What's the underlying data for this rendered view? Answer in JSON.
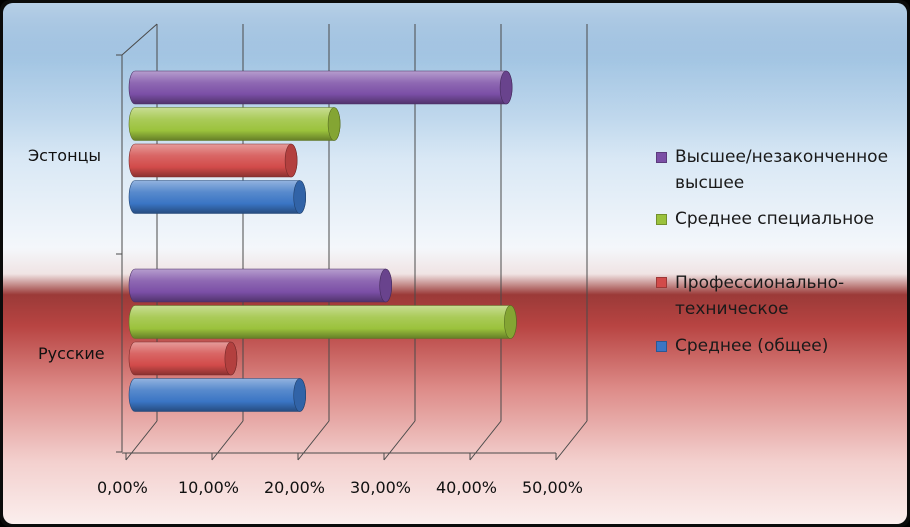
{
  "chart_data": {
    "type": "bar",
    "orientation": "horizontal",
    "style": "3d-cylinder",
    "categories": [
      "Эстонцы",
      "Русские"
    ],
    "series": [
      {
        "name": "Высшее/незаконченное высшее",
        "color": "#7b4fa6",
        "values": [
          43.5,
          29.5
        ]
      },
      {
        "name": "Среднее специальное",
        "color": "#9bc23c",
        "values": [
          23.5,
          44.0
        ]
      },
      {
        "name": "Профессионально-техническое",
        "color": "#d24b4a",
        "values": [
          18.5,
          11.5
        ]
      },
      {
        "name": "Среднее (общее)",
        "color": "#3a75c4",
        "values": [
          19.5,
          19.5
        ]
      }
    ],
    "xlim": [
      0,
      50
    ],
    "xticks": [
      "0,00%",
      "10,00%",
      "20,00%",
      "30,00%",
      "40,00%",
      "50,00%"
    ],
    "grid": true,
    "legend_position": "right"
  },
  "legend": {
    "items": [
      {
        "lines": [
          "Высшее/незаконченное",
          "высшее"
        ],
        "color": "#7b4fa6"
      },
      {
        "lines": [
          "Среднее специальное"
        ],
        "color": "#9bc23c"
      },
      {
        "lines": [
          "Профессионально-",
          "техническое"
        ],
        "color": "#d24b4a"
      },
      {
        "lines": [
          "Среднее (общее)"
        ],
        "color": "#3a75c4"
      }
    ]
  }
}
